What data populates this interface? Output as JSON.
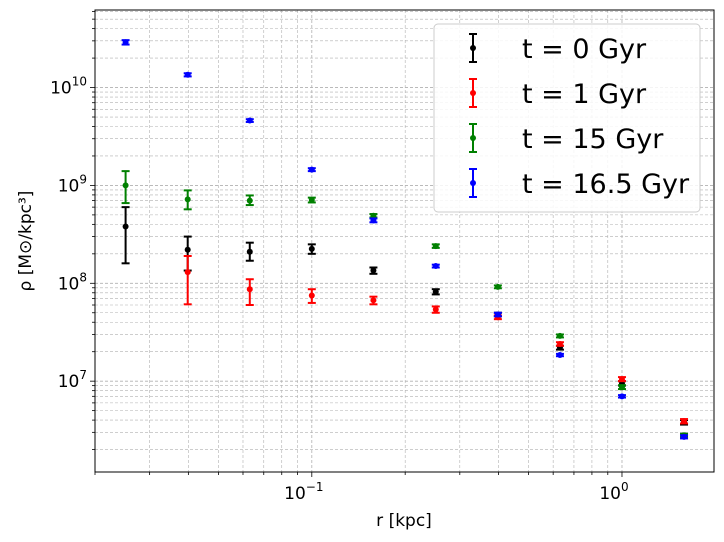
{
  "chart_data": {
    "type": "scatter",
    "title": "",
    "xlabel": "r [kpc]",
    "ylabel": "ρ [M⊙/kpc³]",
    "xscale": "log",
    "yscale": "log",
    "xlim": [
      0.02,
      1.98
    ],
    "ylim": [
      1180000.0,
      62000000000.0
    ],
    "grid": true,
    "legend_position": "top-right",
    "xticks": [
      {
        "value": 0.1,
        "base": "10",
        "exp": "−1"
      },
      {
        "value": 1,
        "base": "10",
        "exp": "0"
      }
    ],
    "yticks": [
      {
        "value": 10000000.0,
        "base": "10",
        "exp": "7"
      },
      {
        "value": 100000000.0,
        "base": "10",
        "exp": "8"
      },
      {
        "value": 1000000000.0,
        "base": "10",
        "exp": "9"
      },
      {
        "value": 10000000000.0,
        "base": "10",
        "exp": "10"
      }
    ],
    "series": [
      {
        "name": "t = 0 Gyr",
        "color": "#000000",
        "x": [
          0.0251,
          0.0398,
          0.0631,
          0.1,
          0.158,
          0.251,
          0.398,
          0.631,
          1.0,
          1.585
        ],
        "y": [
          380000000.0,
          220000000.0,
          210000000.0,
          225000000.0,
          135000000.0,
          82000000.0,
          48000000.0,
          22000000.0,
          9500000.0,
          3800000.0
        ],
        "y_low": [
          160000000.0,
          135000000.0,
          170000000.0,
          200000000.0,
          125000000.0,
          77000000.0,
          46000000.0,
          21000000.0,
          9000000.0,
          3600000.0
        ],
        "y_high": [
          600000000.0,
          300000000.0,
          260000000.0,
          250000000.0,
          145000000.0,
          87000000.0,
          50000000.0,
          23000000.0,
          10000000.0,
          4000000.0
        ]
      },
      {
        "name": "t = 1 Gyr",
        "color": "#ff0000",
        "x": [
          0.0398,
          0.0631,
          0.1,
          0.158,
          0.251,
          0.398,
          0.631,
          1.0,
          1.585
        ],
        "y": [
          130000000.0,
          87000000.0,
          75000000.0,
          67000000.0,
          54000000.0,
          45000000.0,
          24000000.0,
          10500000.0,
          3900000.0
        ],
        "y_low": [
          61000000.0,
          60000000.0,
          63000000.0,
          61000000.0,
          50000000.0,
          43000000.0,
          23000000.0,
          10000000.0,
          3700000.0
        ],
        "y_high": [
          190000000.0,
          110000000.0,
          87000000.0,
          73000000.0,
          58000000.0,
          47000000.0,
          25000000.0,
          11000000.0,
          4100000.0
        ]
      },
      {
        "name": "t = 15 Gyr",
        "color": "#008000",
        "x": [
          0.0251,
          0.0398,
          0.0631,
          0.1,
          0.158,
          0.251,
          0.398,
          0.631,
          1.0,
          1.585
        ],
        "y": [
          1000000000.0,
          720000000.0,
          700000000.0,
          710000000.0,
          490000000.0,
          240000000.0,
          92000000.0,
          29000000.0,
          8700000.0,
          2800000.0
        ],
        "y_low": [
          660000000.0,
          570000000.0,
          630000000.0,
          670000000.0,
          470000000.0,
          230000000.0,
          89000000.0,
          28000000.0,
          8300000.0,
          2700000.0
        ],
        "y_high": [
          1400000000.0,
          890000000.0,
          790000000.0,
          750000000.0,
          510000000.0,
          250000000.0,
          95000000.0,
          30000000.0,
          9100000.0,
          2900000.0
        ]
      },
      {
        "name": "t = 16.5 Gyr",
        "color": "#0000ff",
        "x": [
          0.0251,
          0.0398,
          0.0631,
          0.1,
          0.158,
          0.251,
          0.398,
          0.631,
          1.0,
          1.585
        ],
        "y": [
          29000000000.0,
          13500000000.0,
          4600000000.0,
          1450000000.0,
          440000000.0,
          150000000.0,
          48000000.0,
          18500000.0,
          7000000.0,
          2700000.0
        ],
        "y_low": [
          27500000000.0,
          13000000000.0,
          4450000000.0,
          1400000000.0,
          420000000.0,
          145000000.0,
          46000000.0,
          18000000.0,
          6800000.0,
          2600000.0
        ],
        "y_high": [
          30500000000.0,
          14000000000.0,
          4750000000.0,
          1500000000.0,
          460000000.0,
          155000000.0,
          50000000.0,
          19000000.0,
          7200000.0,
          2800000.0
        ]
      }
    ]
  }
}
